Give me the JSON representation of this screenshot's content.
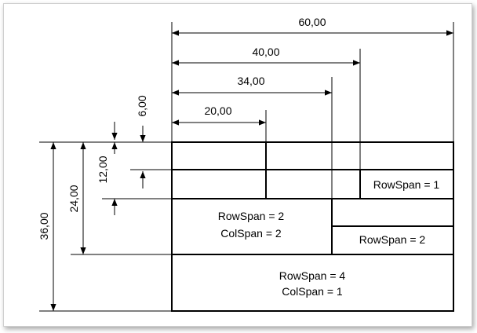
{
  "dimensions": {
    "widths": [
      "60,00",
      "40,00",
      "34,00",
      "20,00"
    ],
    "offset_top": "6,00",
    "height_small": "12,00",
    "height_mid": "24,00",
    "height_total": "36,00"
  },
  "cells": {
    "rowspan_1": "RowSpan = 1",
    "big_rowspan": "RowSpan = 2",
    "big_colspan": "ColSpan = 2",
    "right_rowspan_2": "RowSpan = 2",
    "bottom_rowspan": "RowSpan = 4",
    "bottom_colspan": "ColSpan = 1"
  }
}
